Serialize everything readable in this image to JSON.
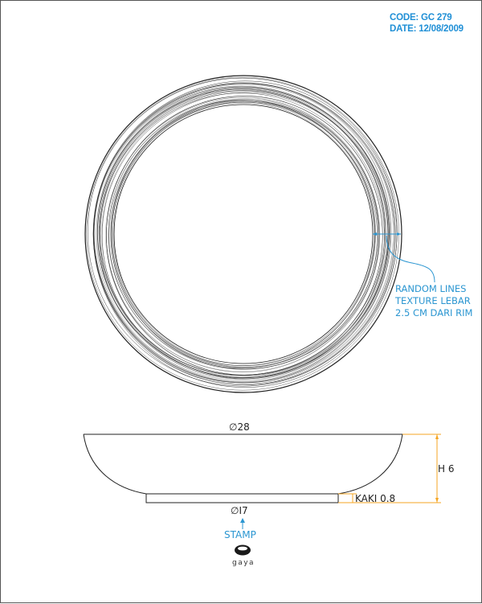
{
  "header": {
    "code": "CODE: GC 279",
    "date": "DATE: 12/08/2009"
  },
  "top_view": {
    "annotation": [
      "RANDOM LINES",
      "TEXTURE LEBAR",
      "2.5 CM DARI RIM"
    ]
  },
  "side_view": {
    "rim_diameter": "∅28",
    "foot_diameter": "∅I7",
    "height": "H 6",
    "foot_height": "KAKI 0.8",
    "stamp_label": "STAMP",
    "logo_text": "gaya"
  },
  "colors": {
    "annotation": "#2b96d1",
    "dimension_line": "#f5a623",
    "outline": "#222222"
  }
}
